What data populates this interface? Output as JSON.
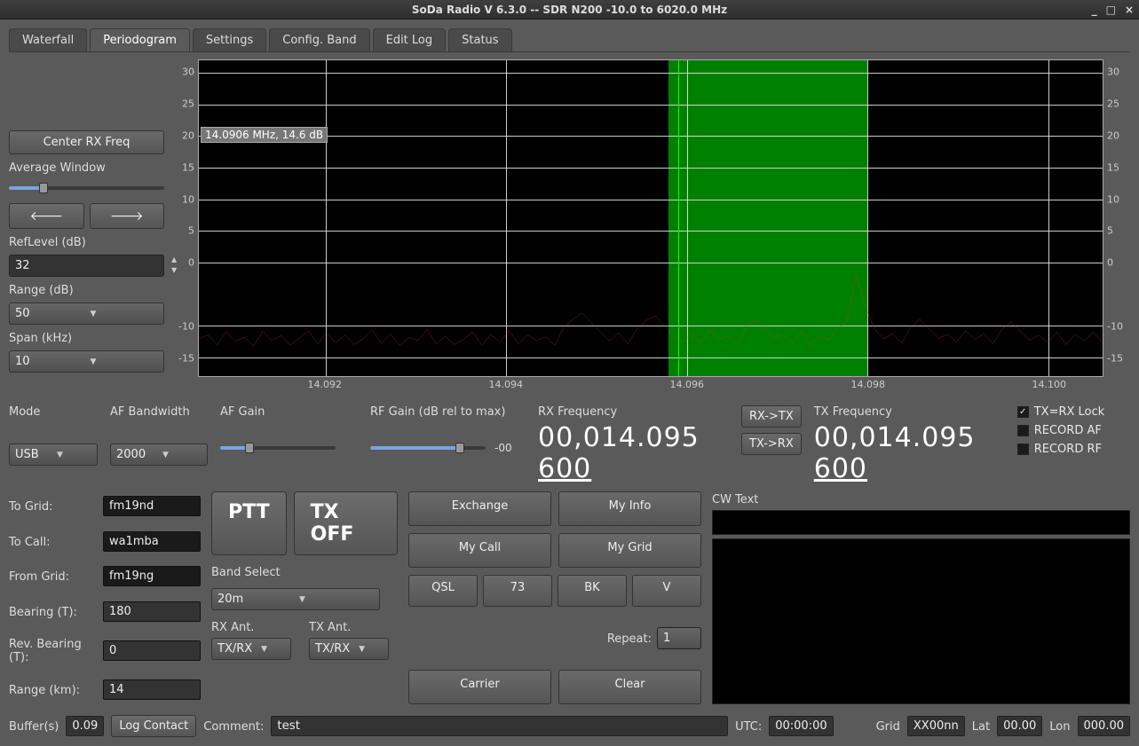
{
  "window": {
    "title": "SoDa Radio V 6.3.0 -- SDR N200        -10.0 to 6020.0 MHz"
  },
  "tabs": [
    "Waterfall",
    "Periodogram",
    "Settings",
    "Config. Band",
    "Edit Log",
    "Status"
  ],
  "active_tab": "Periodogram",
  "left_panel": {
    "center_rx": "Center RX Freq",
    "avg_window": "Average Window",
    "avg_value_pct": 22,
    "reflevel_label": "RefLevel (dB)",
    "reflevel_value": "32",
    "range_label": "Range (dB)",
    "range_value": "50",
    "span_label": "Span (kHz)",
    "span_value": "10"
  },
  "chart": {
    "type": "line",
    "bg": "#000000",
    "grid_color": "#e0e0e0",
    "line_color": "#d83030",
    "band_color": "#008000",
    "cursor_color": "#00ff00",
    "x_min": 14.0906,
    "x_max": 14.1006,
    "xticks": [
      14.092,
      14.094,
      14.096,
      14.098,
      14.1
    ],
    "y_min": -18,
    "y_max": 32,
    "yticks": [
      30,
      25,
      20,
      15,
      10,
      5,
      0,
      -10,
      -15
    ],
    "band_start": 14.0958,
    "band_end": 14.098,
    "cursor_x": 14.0959,
    "cursor_label": "14.0906 MHz, 14.6 dB",
    "data_y": [
      -12.0,
      -11.5,
      -13.0,
      -11.0,
      -12.5,
      -11.8,
      -13.2,
      -10.9,
      -12.4,
      -11.6,
      -13.1,
      -12.0,
      -10.8,
      -12.9,
      -11.2,
      -12.7,
      -11.5,
      -13.0,
      -12.1,
      -10.7,
      -12.8,
      -11.3,
      -13.1,
      -11.9,
      -12.4,
      -10.6,
      -12.9,
      -11.7,
      -13.0,
      -12.2,
      -11.0,
      -13.2,
      -11.4,
      -12.6,
      -10.8,
      -12.9,
      -11.5,
      -12.3,
      -11.8,
      -13.1,
      -10.2,
      -9.0,
      -8.0,
      -9.5,
      -11.0,
      -12.4,
      -11.2,
      -12.9,
      -10.5,
      -9.2,
      -8.5,
      -10.0,
      -11.8,
      -12.6,
      -11.3,
      -12.8,
      -10.7,
      -12.2,
      -11.5,
      -13.0,
      -10.0,
      -9.0,
      -10.5,
      -12.0,
      -11.4,
      -12.7,
      -11.0,
      -13.1,
      -11.6,
      -12.3,
      -10.4,
      -9.3,
      -2.0,
      -7.0,
      -10.5,
      -12.1,
      -11.3,
      -12.8,
      -10.2,
      -9.0,
      -10.5,
      -12.0,
      -11.4,
      -12.6,
      -10.8,
      -12.2,
      -11.3,
      -12.9,
      -10.5,
      -9.4,
      -11.0,
      -12.3,
      -11.5,
      -12.7,
      -11.0,
      -13.0,
      -11.4,
      -12.5,
      -11.0,
      -12.8
    ]
  },
  "mid": {
    "mode_label": "Mode",
    "mode_value": "USB",
    "afbw_label": "AF Bandwidth",
    "afbw_value": "2000",
    "afgain_label": "AF Gain",
    "afgain_pct": 25,
    "rfgain_label": "RF Gain (dB rel to max)",
    "rfgain_pct": 78,
    "rfgain_readout": "-00",
    "rxfreq_label": "RX Frequency",
    "rxfreq_main": "00,014.095",
    "rxfreq_frac": "600",
    "txfreq_label": "TX Frequency",
    "txfreq_main": "00,014.095",
    "txfreq_frac": "600",
    "rx2tx": "RX->TX",
    "tx2rx": "TX->RX",
    "lock_label": "TX=RX Lock",
    "lock_checked": true,
    "recaf_label": "RECORD AF",
    "recrf_label": "RECORD RF"
  },
  "lower": {
    "to_grid_l": "To Grid:",
    "to_grid": "fm19nd",
    "to_call_l": "To Call:",
    "to_call": "wa1mba",
    "from_grid_l": "From Grid:",
    "from_grid": "fm19ng",
    "bearing_l": "Bearing (T):",
    "bearing": "180",
    "rbearing_l": "Rev. Bearing (T):",
    "rbearing": "0",
    "range_l": "Range (km):",
    "range": "14",
    "ptt": "PTT",
    "txoff": "TX OFF",
    "band_select_l": "Band Select",
    "band_select": "20m",
    "rxant_l": "RX Ant.",
    "rxant": "TX/RX",
    "txant_l": "TX Ant.",
    "txant": "TX/RX",
    "exchange": "Exchange",
    "myinfo": "My Info",
    "mycall": "My Call",
    "mygrid": "My Grid",
    "qsl": "QSL",
    "seventythree": "73",
    "bk": "BK",
    "v": "V",
    "repeat_l": "Repeat:",
    "repeat_v": "1",
    "carrier": "Carrier",
    "clear": "Clear",
    "cwtext_l": "CW Text"
  },
  "status": {
    "buffers_l": "Buffer(s)",
    "buffers": "0.09",
    "log_contact": "Log Contact",
    "comment_l": "Comment:",
    "comment": "test",
    "utc_l": "UTC:",
    "utc": "00:00:00",
    "grid_l": "Grid",
    "grid": "XX00nn",
    "lat_l": "Lat",
    "lat": "00.00",
    "lon_l": "Lon",
    "lon": "000.00"
  }
}
